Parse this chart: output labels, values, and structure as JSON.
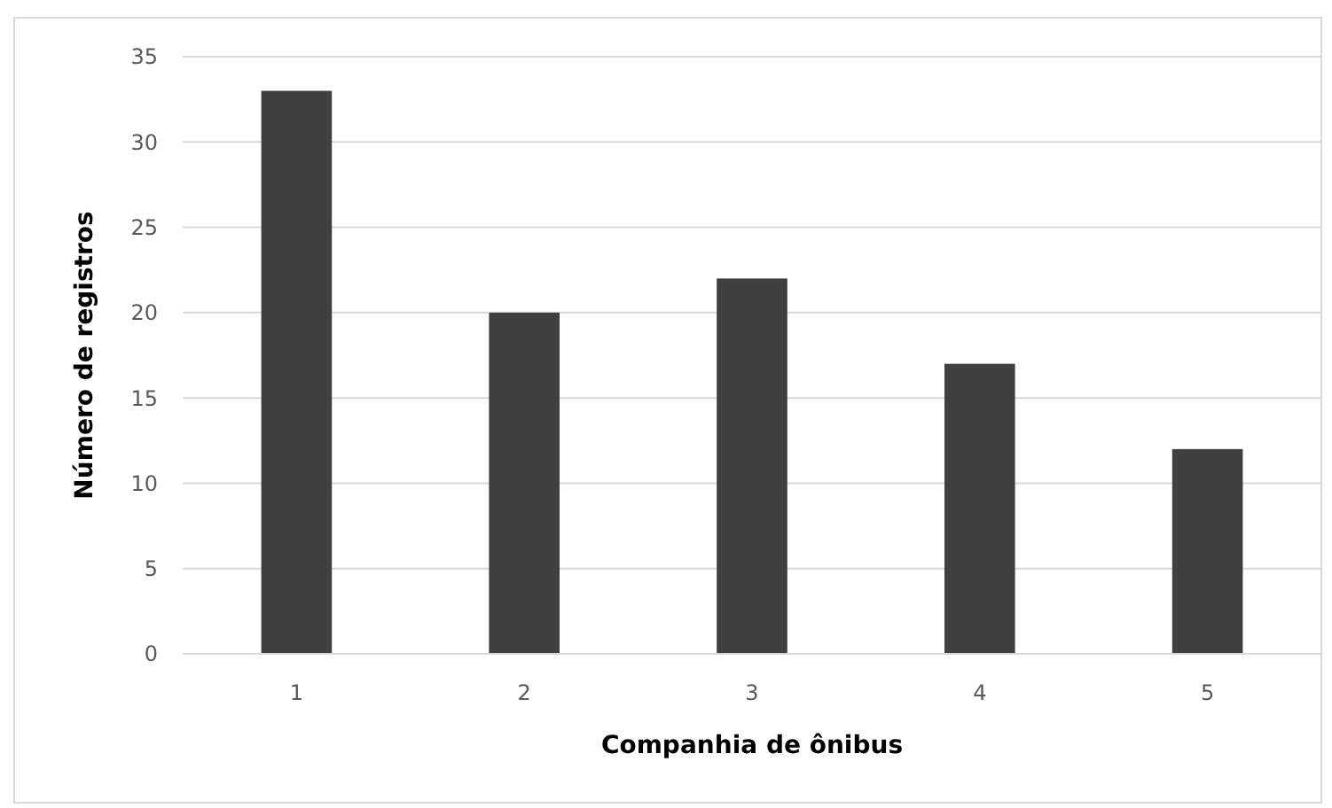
{
  "chart_data": {
    "type": "bar",
    "xlabel": "Companhia de ônibus",
    "ylabel": "Número de registros",
    "categories": [
      "1",
      "2",
      "3",
      "4",
      "5"
    ],
    "values": [
      33,
      20,
      22,
      17,
      12
    ],
    "color": "#404040",
    "ylim": [
      0,
      35
    ],
    "yticks": [
      0,
      5,
      10,
      15,
      20,
      25,
      30,
      35
    ],
    "grid": "y"
  }
}
